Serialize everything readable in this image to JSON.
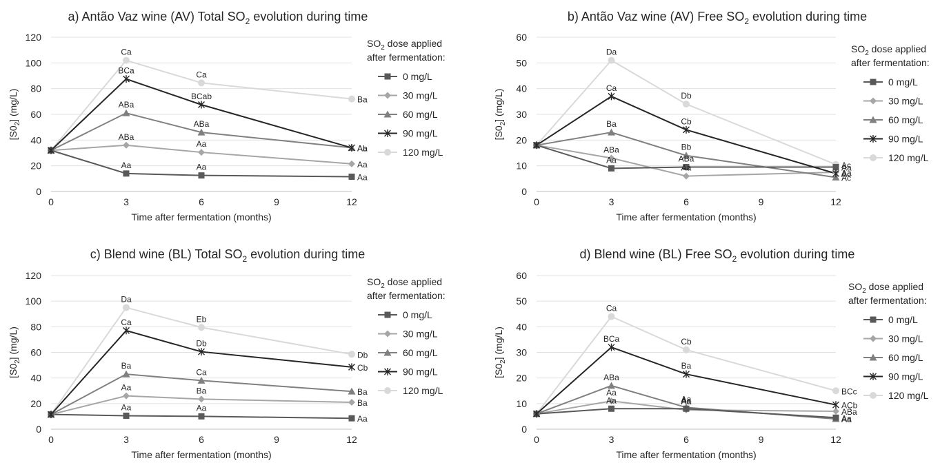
{
  "legend": {
    "title_line1_prefix": "SO",
    "title_line1_sub": "2",
    "title_line1_suffix": " dose applied",
    "title_line2": "after fermentation:",
    "items": [
      {
        "label": "0 mg/L",
        "color": "#595959",
        "marker": "square"
      },
      {
        "label": "30 mg/L",
        "color": "#a6a6a6",
        "marker": "diamond"
      },
      {
        "label": "60 mg/L",
        "color": "#808080",
        "marker": "triangle"
      },
      {
        "label": "90 mg/L",
        "color": "#262626",
        "marker": "star"
      },
      {
        "label": "120 mg/L",
        "color": "#d9d9d9",
        "marker": "circle"
      }
    ]
  },
  "chart_data": [
    {
      "type": "line",
      "title_prefix": "a) Antão Vaz wine (AV) Total SO",
      "title_sub": "2",
      "title_suffix": " evolution during time",
      "xlabel": "Time after fermentation (months)",
      "ylabel_prefix": "[S0",
      "ylabel_sub": "2",
      "ylabel_suffix": "] (mg/L)",
      "xlim": [
        0,
        12
      ],
      "ylim": [
        0,
        120
      ],
      "xticks": [
        0,
        3,
        6,
        9,
        12
      ],
      "yticks": [
        0,
        20,
        40,
        60,
        80,
        100,
        120
      ],
      "grid": "horizontal",
      "legend_position": "right",
      "x": [
        0,
        3,
        6,
        12
      ],
      "series": [
        {
          "name": "0 mg/L",
          "values": [
            32,
            14,
            12.5,
            11.5
          ],
          "labels": [
            "",
            "Aa",
            "Aa",
            "Aa"
          ]
        },
        {
          "name": "30 mg/L",
          "values": [
            32,
            36,
            30.5,
            21.5
          ],
          "labels": [
            "",
            "ABa",
            "Aa",
            "Aa"
          ]
        },
        {
          "name": "60 mg/L",
          "values": [
            32,
            61,
            46,
            34
          ],
          "labels": [
            "",
            "ABa",
            "ABa",
            "Aa"
          ]
        },
        {
          "name": "90 mg/L",
          "values": [
            32,
            87.5,
            67.5,
            34
          ],
          "labels": [
            "",
            "BCa",
            "BCab",
            "Ab"
          ]
        },
        {
          "name": "120 mg/L",
          "values": [
            32,
            102,
            84.5,
            72
          ],
          "labels": [
            "",
            "Ca",
            "Ca",
            "Ba"
          ]
        }
      ]
    },
    {
      "type": "line",
      "title_prefix": "b) Antão Vaz wine (AV) Free SO",
      "title_sub": "2",
      "title_suffix": " evolution during time",
      "xlabel": "Time after fermentation (months)",
      "ylabel_prefix": "[S0",
      "ylabel_sub": "2",
      "ylabel_suffix": "] (mg/L)",
      "xlim": [
        0,
        12
      ],
      "ylim": [
        0,
        60
      ],
      "xticks": [
        0,
        3,
        6,
        9,
        12
      ],
      "yticks": [
        0,
        10,
        20,
        30,
        40,
        50,
        60
      ],
      "grid": "horizontal",
      "legend_position": "right",
      "x": [
        0,
        3,
        6,
        12
      ],
      "series": [
        {
          "name": "0 mg/L",
          "values": [
            18,
            9,
            9.5,
            9.5
          ],
          "labels": [
            "",
            "Aa",
            "ABa",
            "Aa"
          ]
        },
        {
          "name": "30 mg/L",
          "values": [
            18,
            13,
            6,
            7.5
          ],
          "labels": [
            "",
            "ABa",
            "Aa",
            "Aa"
          ]
        },
        {
          "name": "60 mg/L",
          "values": [
            18,
            23,
            14,
            5.5
          ],
          "labels": [
            "",
            "Ba",
            "Bb",
            "Ac"
          ]
        },
        {
          "name": "90 mg/L",
          "values": [
            18,
            37,
            24,
            7
          ],
          "labels": [
            "",
            "Ca",
            "Cb",
            "Ac"
          ]
        },
        {
          "name": "120 mg/L",
          "values": [
            18,
            51,
            34,
            10.5
          ],
          "labels": [
            "",
            "Da",
            "Db",
            "Ac"
          ]
        }
      ]
    },
    {
      "type": "line",
      "title_prefix": "c) Blend wine (BL) Total SO",
      "title_sub": "2",
      "title_suffix": " evolution during time",
      "xlabel": "Time after fermentation (months)",
      "ylabel_prefix": "[S0",
      "ylabel_sub": "2",
      "ylabel_suffix": "] (mg/L)",
      "xlim": [
        0,
        12
      ],
      "ylim": [
        0,
        120
      ],
      "xticks": [
        0,
        3,
        6,
        9,
        12
      ],
      "yticks": [
        0,
        20,
        40,
        60,
        80,
        100,
        120
      ],
      "grid": "horizontal",
      "legend_position": "right",
      "x": [
        0,
        3,
        6,
        12
      ],
      "series": [
        {
          "name": "0 mg/L",
          "values": [
            11.5,
            10.5,
            10,
            8.5
          ],
          "labels": [
            "",
            "Aa",
            "Aa",
            "Aa"
          ]
        },
        {
          "name": "30 mg/L",
          "values": [
            11.5,
            26,
            23.5,
            21
          ],
          "labels": [
            "",
            "Aa",
            "Ba",
            "Ba"
          ]
        },
        {
          "name": "60 mg/L",
          "values": [
            11.5,
            43,
            38,
            29.5
          ],
          "labels": [
            "",
            "Ba",
            "Ca",
            "Ba"
          ]
        },
        {
          "name": "90 mg/L",
          "values": [
            11.5,
            77,
            60.5,
            48.5
          ],
          "labels": [
            "",
            "Ca",
            "Db",
            "Cb"
          ]
        },
        {
          "name": "120 mg/L",
          "values": [
            11.5,
            95,
            79.5,
            58.5
          ],
          "labels": [
            "",
            "Da",
            "Eb",
            "Db"
          ]
        }
      ]
    },
    {
      "type": "line",
      "title_prefix": "d) Blend wine (BL) Free SO",
      "title_sub": "2",
      "title_suffix": " evolution during time",
      "xlabel": "Time after fermentation (months)",
      "ylabel_prefix": "[S0",
      "ylabel_sub": "2",
      "ylabel_suffix": "] (mg/L)",
      "xlim": [
        0,
        12
      ],
      "ylim": [
        0,
        60
      ],
      "xticks": [
        0,
        3,
        6,
        9,
        12
      ],
      "yticks": [
        0,
        10,
        20,
        30,
        40,
        50,
        60
      ],
      "grid": "horizontal",
      "legend_position": "right",
      "x": [
        0,
        3,
        6,
        12
      ],
      "series": [
        {
          "name": "0 mg/L",
          "values": [
            6,
            8,
            8,
            4.5
          ],
          "labels": [
            "",
            "Aa",
            "Aa",
            "Aa"
          ]
        },
        {
          "name": "30 mg/L",
          "values": [
            6,
            11,
            7.5,
            7
          ],
          "labels": [
            "",
            "Aa",
            "Aa",
            "ABa"
          ]
        },
        {
          "name": "60 mg/L",
          "values": [
            6,
            17,
            8.5,
            4
          ],
          "labels": [
            "",
            "ABa",
            "Aa",
            "Aa"
          ]
        },
        {
          "name": "90 mg/L",
          "values": [
            6,
            32,
            21.5,
            9.5
          ],
          "labels": [
            "",
            "BCa",
            "Ba",
            "ACb"
          ]
        },
        {
          "name": "120 mg/L",
          "values": [
            6,
            44,
            31,
            15
          ],
          "labels": [
            "",
            "Ca",
            "Cb",
            "BCc"
          ]
        }
      ]
    }
  ]
}
